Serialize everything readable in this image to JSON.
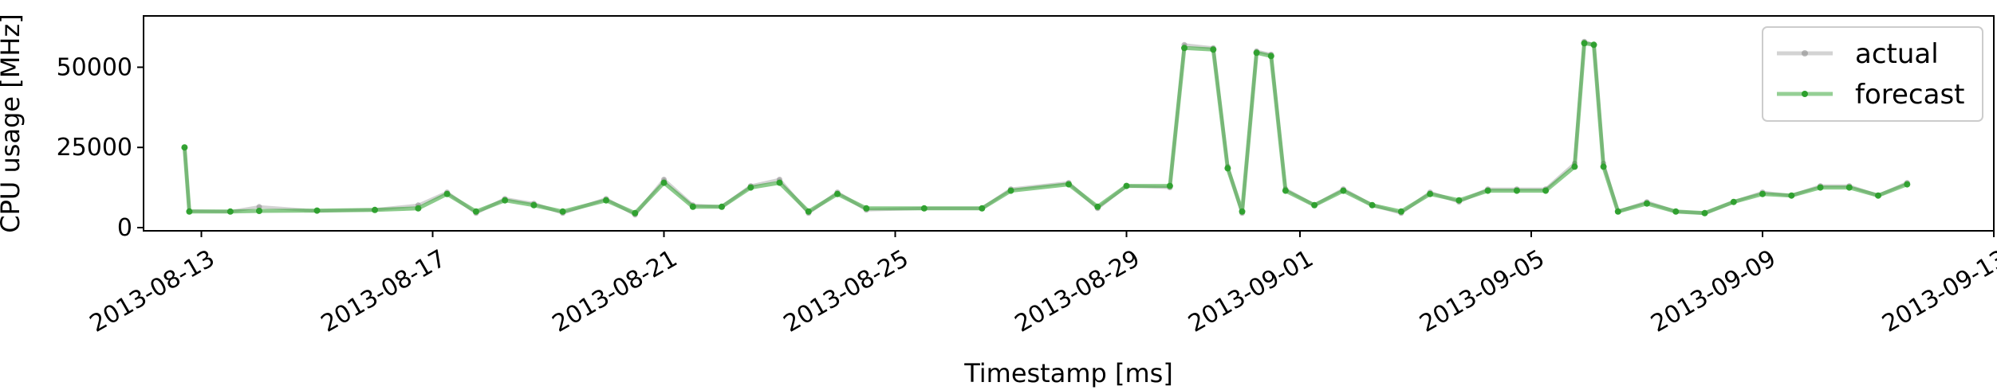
{
  "chart_data": {
    "type": "line",
    "xlabel": "Timestamp [ms]",
    "ylabel": "CPU usage [MHz]",
    "x_ticks": [
      "2013-08-13",
      "2013-08-17",
      "2013-08-21",
      "2013-08-25",
      "2013-08-29",
      "2013-09-01",
      "2013-09-05",
      "2013-09-09",
      "2013-09-13"
    ],
    "y_ticks": [
      0,
      25000,
      50000
    ],
    "xlim": [
      "2013-08-12T00:00",
      "2013-09-13T00:00"
    ],
    "ylim": [
      -1000,
      66000
    ],
    "legend_position": "top-right",
    "series": [
      {
        "name": "actual",
        "color": "#808080",
        "points": [
          [
            "2013-08-12T17:00",
            25000
          ],
          [
            "2013-08-12T19:00",
            5200
          ],
          [
            "2013-08-13T12:00",
            5000
          ],
          [
            "2013-08-14T00:00",
            6500
          ],
          [
            "2013-08-15T00:00",
            5200
          ],
          [
            "2013-08-16T00:00",
            5600
          ],
          [
            "2013-08-16T18:00",
            7000
          ],
          [
            "2013-08-17T06:00",
            11000
          ],
          [
            "2013-08-17T18:00",
            4500
          ],
          [
            "2013-08-18T06:00",
            9000
          ],
          [
            "2013-08-18T18:00",
            7500
          ],
          [
            "2013-08-19T06:00",
            4500
          ],
          [
            "2013-08-20T00:00",
            9000
          ],
          [
            "2013-08-20T12:00",
            4000
          ],
          [
            "2013-08-21T00:00",
            15000
          ],
          [
            "2013-08-21T12:00",
            7000
          ],
          [
            "2013-08-22T00:00",
            6500
          ],
          [
            "2013-08-22T12:00",
            13000
          ],
          [
            "2013-08-23T00:00",
            15000
          ],
          [
            "2013-08-23T12:00",
            4500
          ],
          [
            "2013-08-24T00:00",
            11000
          ],
          [
            "2013-08-24T12:00",
            5500
          ],
          [
            "2013-08-25T12:00",
            6000
          ],
          [
            "2013-08-26T12:00",
            6000
          ],
          [
            "2013-08-27T00:00",
            12000
          ],
          [
            "2013-08-28T00:00",
            14000
          ],
          [
            "2013-08-28T12:00",
            6000
          ],
          [
            "2013-08-29T00:00",
            13000
          ],
          [
            "2013-08-29T18:00",
            12500
          ],
          [
            "2013-08-30T00:00",
            57000
          ],
          [
            "2013-08-30T12:00",
            56000
          ],
          [
            "2013-08-30T18:00",
            19000
          ],
          [
            "2013-08-31T00:00",
            4500
          ],
          [
            "2013-08-31T06:00",
            55000
          ],
          [
            "2013-08-31T12:00",
            54000
          ],
          [
            "2013-08-31T18:00",
            12000
          ],
          [
            "2013-09-01T06:00",
            7000
          ],
          [
            "2013-09-01T18:00",
            12000
          ],
          [
            "2013-09-02T06:00",
            7000
          ],
          [
            "2013-09-02T18:00",
            4500
          ],
          [
            "2013-09-03T06:00",
            11000
          ],
          [
            "2013-09-03T18:00",
            8000
          ],
          [
            "2013-09-04T06:00",
            12000
          ],
          [
            "2013-09-04T18:00",
            12000
          ],
          [
            "2013-09-05T06:00",
            12000
          ],
          [
            "2013-09-05T18:00",
            20000
          ],
          [
            "2013-09-05T22:00",
            58000
          ],
          [
            "2013-09-06T02:00",
            57000
          ],
          [
            "2013-09-06T06:00",
            20000
          ],
          [
            "2013-09-06T12:00",
            5000
          ],
          [
            "2013-09-07T00:00",
            8000
          ],
          [
            "2013-09-07T12:00",
            5000
          ],
          [
            "2013-09-08T00:00",
            4500
          ],
          [
            "2013-09-08T12:00",
            8000
          ],
          [
            "2013-09-09T00:00",
            11000
          ],
          [
            "2013-09-09T12:00",
            10000
          ],
          [
            "2013-09-10T00:00",
            13000
          ],
          [
            "2013-09-10T12:00",
            13000
          ],
          [
            "2013-09-11T00:00",
            10000
          ],
          [
            "2013-09-11T12:00",
            14000
          ]
        ]
      },
      {
        "name": "forecast",
        "color": "#2ca02c",
        "points": [
          [
            "2013-08-12T17:00",
            25000
          ],
          [
            "2013-08-12T19:00",
            5000
          ],
          [
            "2013-08-13T12:00",
            5000
          ],
          [
            "2013-08-14T00:00",
            5200
          ],
          [
            "2013-08-15T00:00",
            5300
          ],
          [
            "2013-08-16T00:00",
            5500
          ],
          [
            "2013-08-16T18:00",
            6000
          ],
          [
            "2013-08-17T06:00",
            10500
          ],
          [
            "2013-08-17T18:00",
            5000
          ],
          [
            "2013-08-18T06:00",
            8500
          ],
          [
            "2013-08-18T18:00",
            7000
          ],
          [
            "2013-08-19T06:00",
            5000
          ],
          [
            "2013-08-20T00:00",
            8500
          ],
          [
            "2013-08-20T12:00",
            4500
          ],
          [
            "2013-08-21T00:00",
            14000
          ],
          [
            "2013-08-21T12:00",
            6500
          ],
          [
            "2013-08-22T00:00",
            6500
          ],
          [
            "2013-08-22T12:00",
            12500
          ],
          [
            "2013-08-23T00:00",
            14000
          ],
          [
            "2013-08-23T12:00",
            5000
          ],
          [
            "2013-08-24T00:00",
            10500
          ],
          [
            "2013-08-24T12:00",
            6000
          ],
          [
            "2013-08-25T12:00",
            6000
          ],
          [
            "2013-08-26T12:00",
            6000
          ],
          [
            "2013-08-27T00:00",
            11500
          ],
          [
            "2013-08-28T00:00",
            13500
          ],
          [
            "2013-08-28T12:00",
            6500
          ],
          [
            "2013-08-29T00:00",
            13000
          ],
          [
            "2013-08-29T18:00",
            13000
          ],
          [
            "2013-08-30T00:00",
            56000
          ],
          [
            "2013-08-30T12:00",
            55500
          ],
          [
            "2013-08-30T18:00",
            18500
          ],
          [
            "2013-08-31T00:00",
            5000
          ],
          [
            "2013-08-31T06:00",
            54500
          ],
          [
            "2013-08-31T12:00",
            53500
          ],
          [
            "2013-08-31T18:00",
            11500
          ],
          [
            "2013-09-01T06:00",
            7000
          ],
          [
            "2013-09-01T18:00",
            11500
          ],
          [
            "2013-09-02T06:00",
            7000
          ],
          [
            "2013-09-02T18:00",
            5000
          ],
          [
            "2013-09-03T06:00",
            10500
          ],
          [
            "2013-09-03T18:00",
            8500
          ],
          [
            "2013-09-04T06:00",
            11500
          ],
          [
            "2013-09-04T18:00",
            11500
          ],
          [
            "2013-09-05T06:00",
            11500
          ],
          [
            "2013-09-05T18:00",
            19000
          ],
          [
            "2013-09-05T22:00",
            57500
          ],
          [
            "2013-09-06T02:00",
            57000
          ],
          [
            "2013-09-06T06:00",
            19000
          ],
          [
            "2013-09-06T12:00",
            5000
          ],
          [
            "2013-09-07T00:00",
            7500
          ],
          [
            "2013-09-07T12:00",
            5000
          ],
          [
            "2013-09-08T00:00",
            4500
          ],
          [
            "2013-09-08T12:00",
            8000
          ],
          [
            "2013-09-09T00:00",
            10500
          ],
          [
            "2013-09-09T12:00",
            10000
          ],
          [
            "2013-09-10T00:00",
            12500
          ],
          [
            "2013-09-10T12:00",
            12500
          ],
          [
            "2013-09-11T00:00",
            10000
          ],
          [
            "2013-09-11T12:00",
            13500
          ]
        ]
      }
    ]
  }
}
